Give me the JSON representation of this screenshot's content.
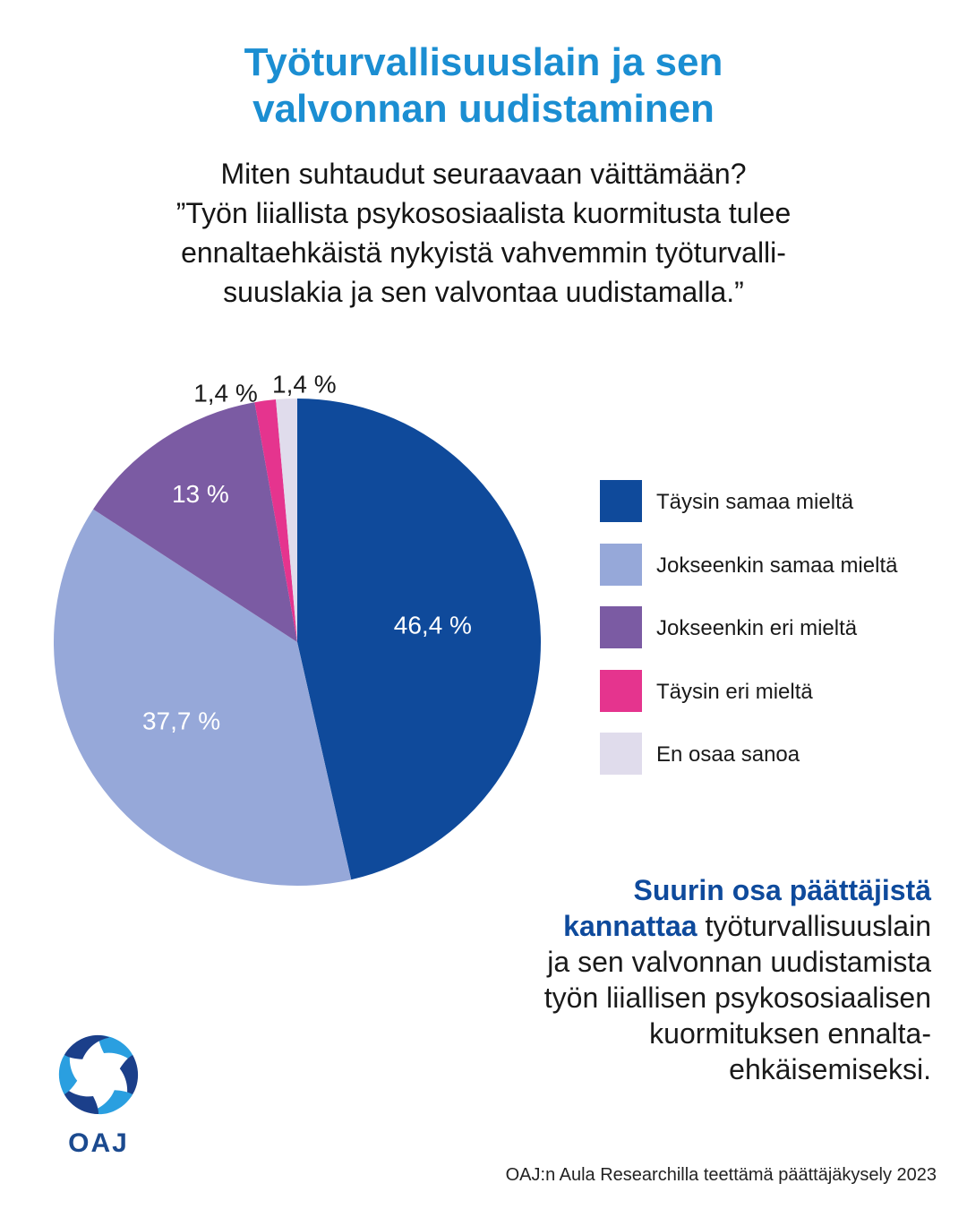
{
  "title_lines": [
    "Työturvallisuuslain ja sen",
    "valvonnan uudistaminen"
  ],
  "question_lines": [
    "Miten suhtaudut seuraavaan väittämään?",
    "”Työn liiallista psykososiaalista kuormitusta tulee",
    "ennaltaehkäistä nykyistä vahvemmin työturvalli-",
    "suuslakia ja sen valvontaa uudistamalla.”"
  ],
  "chart_data": {
    "type": "pie",
    "slices": [
      {
        "label": "Täysin samaa mieltä",
        "value": 46.4,
        "value_label": "46,4 %",
        "color": "#0f4a9b",
        "label_color": "#ffffff"
      },
      {
        "label": "Jokseenkin samaa mieltä",
        "value": 37.7,
        "value_label": "37,7 %",
        "color": "#96a8d9",
        "label_color": "#ffffff"
      },
      {
        "label": "Jokseenkin eri mieltä",
        "value": 13,
        "value_label": "13 %",
        "color": "#7b5ba3",
        "label_color": "#ffffff"
      },
      {
        "label": "Täysin eri mieltä",
        "value": 1.4,
        "value_label": "1,4 %",
        "color": "#e5348e",
        "label_color": "#1a1a1a"
      },
      {
        "label": "En osaa sanoa",
        "value": 1.4,
        "value_label": "1,4 %",
        "color": "#e0dcec",
        "label_color": "#1a1a1a"
      }
    ],
    "start": "12 o'clock",
    "direction": "clockwise",
    "legend_position": "right"
  },
  "callout": {
    "highlight_lines": [
      "Suurin osa päättäjistä",
      "kannattaa"
    ],
    "rest_first": " työturvallisuuslain",
    "lines": [
      "ja sen valvonnan uudistamista",
      "työn liiallisen psykososiaalisen",
      "kuormituksen ennalta-",
      "ehkäisemiseksi."
    ]
  },
  "logo_text": "OAJ",
  "logo_colors": {
    "light": "#2a9fe0",
    "dark": "#1b3f8a"
  },
  "source": "OAJ:n Aula Researchilla teettämä päättäjäkysely 2023"
}
